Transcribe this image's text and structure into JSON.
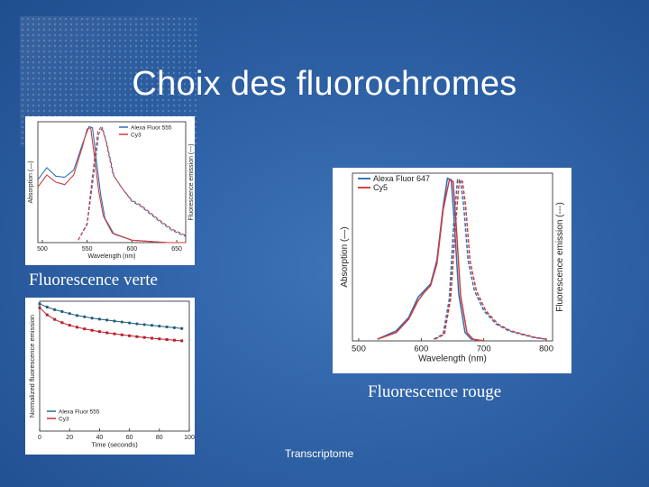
{
  "slide": {
    "title": "Choix des fluorochromes",
    "caption_green": "Fluorescence verte",
    "caption_red": "Fluorescence rouge",
    "footer": "Transcriptome"
  },
  "colors": {
    "blue": "#2f6fb5",
    "red": "#d43a3a",
    "teal": "#1f5f7a",
    "darkred": "#b8202a"
  },
  "chart_data": [
    {
      "id": "green-spectra",
      "type": "line",
      "xlabel": "Wavelength (nm)",
      "ylabel_left": "Absorption (—)",
      "ylabel_right": "Fluorescence emission (---)",
      "xticks": [
        500,
        550,
        600,
        650
      ],
      "xlim": [
        495,
        660
      ],
      "ylim": [
        0,
        1
      ],
      "legend": [
        "Alexa Fluor 555",
        "Cy3"
      ],
      "legend_position": "top-right",
      "series": [
        {
          "name": "Alexa Fluor 555",
          "kind": "absorption",
          "x": [
            495,
            505,
            515,
            525,
            535,
            545,
            552,
            556,
            560,
            565,
            570,
            580,
            600,
            620,
            640,
            660
          ],
          "y": [
            0.52,
            0.62,
            0.55,
            0.54,
            0.6,
            0.82,
            0.96,
            0.95,
            0.7,
            0.4,
            0.2,
            0.07,
            0.02,
            0.01,
            0.0,
            0.0
          ]
        },
        {
          "name": "Cy3",
          "kind": "absorption",
          "x": [
            495,
            505,
            515,
            525,
            535,
            545,
            550,
            554,
            558,
            563,
            568,
            578,
            600,
            620,
            640,
            660
          ],
          "y": [
            0.46,
            0.56,
            0.5,
            0.48,
            0.56,
            0.8,
            0.94,
            0.95,
            0.72,
            0.42,
            0.22,
            0.08,
            0.02,
            0.01,
            0.0,
            0.0
          ]
        },
        {
          "name": "Alexa Fluor 555",
          "kind": "emission",
          "x": [
            540,
            550,
            558,
            563,
            567,
            572,
            580,
            590,
            600,
            610,
            620,
            630,
            645,
            660
          ],
          "y": [
            0.02,
            0.15,
            0.6,
            0.9,
            0.95,
            0.82,
            0.55,
            0.44,
            0.34,
            0.3,
            0.24,
            0.18,
            0.1,
            0.05
          ]
        },
        {
          "name": "Cy3",
          "kind": "emission",
          "x": [
            540,
            550,
            557,
            562,
            566,
            571,
            579,
            589,
            600,
            610,
            620,
            630,
            645,
            660
          ],
          "y": [
            0.02,
            0.16,
            0.62,
            0.92,
            0.96,
            0.84,
            0.56,
            0.45,
            0.35,
            0.31,
            0.25,
            0.19,
            0.11,
            0.06
          ]
        }
      ]
    },
    {
      "id": "photostability",
      "type": "line",
      "xlabel": "Time (seconds)",
      "ylabel": "Normalized fluorescence emission",
      "xticks": [
        0,
        20,
        40,
        60,
        80,
        100
      ],
      "xlim": [
        0,
        100
      ],
      "ylim": [
        0,
        1
      ],
      "legend": [
        "Alexa Fluor 555",
        "Cy3"
      ],
      "legend_position": "bottom-left",
      "series": [
        {
          "name": "Alexa Fluor 555",
          "x": [
            0,
            5,
            10,
            15,
            20,
            25,
            30,
            35,
            40,
            45,
            50,
            55,
            60,
            65,
            70,
            75,
            80,
            85,
            90,
            95
          ],
          "y": [
            0.98,
            0.955,
            0.935,
            0.92,
            0.905,
            0.89,
            0.88,
            0.87,
            0.862,
            0.855,
            0.847,
            0.84,
            0.833,
            0.826,
            0.82,
            0.814,
            0.808,
            0.802,
            0.796,
            0.79
          ]
        },
        {
          "name": "Cy3",
          "x": [
            0,
            5,
            10,
            15,
            20,
            25,
            30,
            35,
            40,
            45,
            50,
            55,
            60,
            65,
            70,
            75,
            80,
            85,
            90,
            95
          ],
          "y": [
            0.95,
            0.895,
            0.86,
            0.835,
            0.815,
            0.8,
            0.787,
            0.776,
            0.766,
            0.757,
            0.749,
            0.741,
            0.734,
            0.727,
            0.721,
            0.715,
            0.71,
            0.705,
            0.7,
            0.695
          ]
        }
      ]
    },
    {
      "id": "red-spectra",
      "type": "line",
      "xlabel": "Wavelength (nm)",
      "ylabel_left": "Absorption (—)",
      "ylabel_right": "Fluorescence emission (---)",
      "xticks": [
        500,
        600,
        700,
        800
      ],
      "xlim": [
        490,
        810
      ],
      "ylim": [
        0,
        1
      ],
      "legend": [
        "Alexa Fluor 647",
        "Cy5"
      ],
      "legend_position": "top-left",
      "series": [
        {
          "name": "Alexa Fluor 647",
          "kind": "absorption",
          "x": [
            530,
            560,
            580,
            595,
            605,
            615,
            625,
            635,
            642,
            648,
            653,
            660,
            670,
            680,
            700
          ],
          "y": [
            0.01,
            0.06,
            0.14,
            0.26,
            0.3,
            0.34,
            0.48,
            0.8,
            0.97,
            0.96,
            0.7,
            0.28,
            0.05,
            0.01,
            0.0
          ]
        },
        {
          "name": "Cy5",
          "kind": "absorption",
          "x": [
            530,
            560,
            580,
            595,
            605,
            615,
            625,
            635,
            645,
            651,
            656,
            663,
            673,
            683,
            700
          ],
          "y": [
            0.01,
            0.05,
            0.13,
            0.24,
            0.29,
            0.33,
            0.46,
            0.78,
            0.96,
            0.95,
            0.68,
            0.27,
            0.05,
            0.01,
            0.0
          ]
        },
        {
          "name": "Alexa Fluor 647",
          "kind": "emission",
          "x": [
            620,
            635,
            645,
            652,
            658,
            663,
            668,
            675,
            685,
            700,
            720,
            740,
            760,
            780,
            800
          ],
          "y": [
            0.01,
            0.04,
            0.25,
            0.7,
            0.96,
            0.95,
            0.8,
            0.48,
            0.3,
            0.18,
            0.1,
            0.06,
            0.04,
            0.02,
            0.01
          ]
        },
        {
          "name": "Cy5",
          "kind": "emission",
          "x": [
            622,
            637,
            647,
            655,
            661,
            666,
            671,
            678,
            688,
            703,
            723,
            743,
            763,
            783,
            800
          ],
          "y": [
            0.01,
            0.04,
            0.25,
            0.7,
            0.96,
            0.95,
            0.8,
            0.48,
            0.3,
            0.18,
            0.1,
            0.06,
            0.04,
            0.02,
            0.01
          ]
        }
      ]
    }
  ]
}
